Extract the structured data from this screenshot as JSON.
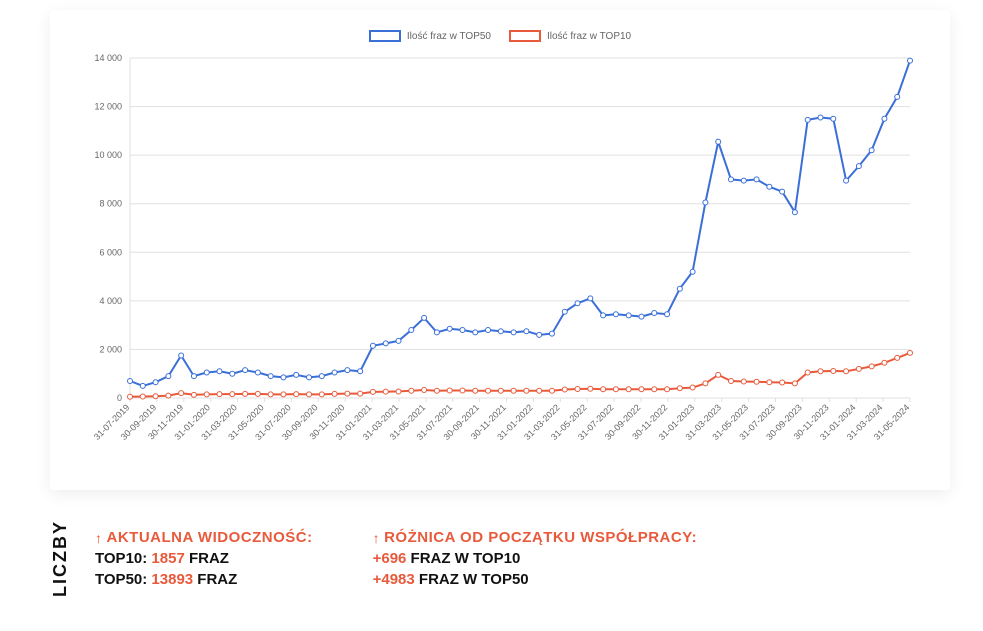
{
  "chart": {
    "type": "line",
    "legend": [
      {
        "label": "Ilość fraz w TOP50",
        "color": "#3a6fd8"
      },
      {
        "label": "Ilość fraz w TOP10",
        "color": "#e85a3b"
      }
    ],
    "x_labels": [
      "31-07-2019",
      "30-09-2019",
      "30-11-2019",
      "31-01-2020",
      "31-03-2020",
      "31-05-2020",
      "31-07-2020",
      "30-09-2020",
      "30-11-2020",
      "31-01-2021",
      "31-03-2021",
      "31-05-2021",
      "31-07-2021",
      "30-09-2021",
      "30-11-2021",
      "31-01-2022",
      "31-03-2022",
      "31-05-2022",
      "31-07-2022",
      "30-09-2022",
      "30-11-2022",
      "31-01-2023",
      "31-03-2023",
      "31-05-2023",
      "31-07-2023",
      "30-09-2023",
      "30-11-2023",
      "31-01-2024",
      "31-03-2024",
      "31-05-2024"
    ],
    "ylim": [
      0,
      14000
    ],
    "ytick_step": 2000,
    "ytick_labels": [
      "0",
      "2 000",
      "4 000",
      "6 000",
      "8 000",
      "10 000",
      "12 000",
      "14 000"
    ],
    "grid_color": "#e0e0e0",
    "background_color": "#ffffff",
    "axis_fontsize": 9,
    "legend_fontsize": 10,
    "line_width": 2,
    "marker_radius": 2.5,
    "series": [
      {
        "name": "top50",
        "color": "#3a6fd8",
        "values": [
          700,
          500,
          650,
          900,
          1750,
          900,
          1050,
          1100,
          1000,
          1150,
          1050,
          900,
          850,
          950,
          850,
          900,
          1050,
          1150,
          1100,
          2150,
          2250,
          2350,
          2800,
          3300,
          2700,
          2850,
          2800,
          2700,
          2800,
          2750,
          2700,
          2750,
          2600,
          2650,
          3550,
          3900,
          4100,
          3400,
          3450,
          3400,
          3350,
          3500,
          3450,
          4500,
          5200,
          8050,
          10550,
          9000,
          8950,
          9000,
          8700,
          8500,
          7650,
          11450,
          11550,
          11500,
          8950,
          9550,
          10200,
          11500,
          12400,
          13893
        ]
      },
      {
        "name": "top10",
        "color": "#e85a3b",
        "values": [
          50,
          60,
          70,
          100,
          200,
          130,
          150,
          160,
          160,
          170,
          170,
          150,
          150,
          160,
          150,
          150,
          170,
          180,
          180,
          250,
          260,
          270,
          300,
          330,
          300,
          310,
          310,
          300,
          300,
          300,
          300,
          300,
          300,
          300,
          350,
          370,
          380,
          360,
          360,
          360,
          360,
          360,
          360,
          400,
          430,
          600,
          950,
          700,
          680,
          670,
          650,
          640,
          600,
          1050,
          1100,
          1110,
          1100,
          1200,
          1300,
          1450,
          1650,
          1857
        ]
      }
    ]
  },
  "stats": {
    "side_title": "LICZBY",
    "col1": {
      "heading": "AKTUALNA WIDOCZNOŚĆ:",
      "line1_prefix": "TOP10: ",
      "line1_value": "1857",
      "line1_suffix": " FRAZ",
      "line2_prefix": "TOP50: ",
      "line2_value": "13893",
      "line2_suffix": " FRAZ"
    },
    "col2": {
      "heading": "RÓŻNICA OD POCZĄTKU WSPÓŁPRACY:",
      "line1_value": "+696",
      "line1_suffix": " FRAZ W TOP10",
      "line2_value": "+4983",
      "line2_suffix": " FRAZ W TOP50"
    },
    "accent_color": "#e85a3b",
    "text_color": "#111111"
  }
}
